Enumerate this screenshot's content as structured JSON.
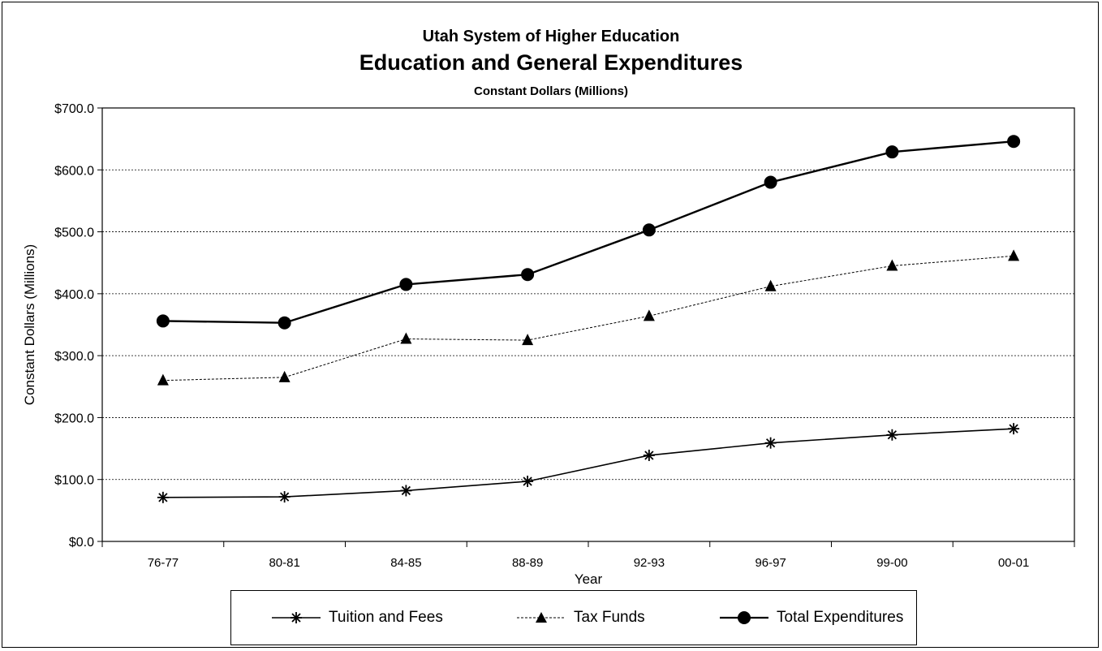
{
  "chart_data": {
    "type": "line",
    "title": "Utah System of Higher Education",
    "subtitle": "Education and General Expenditures",
    "subtitle2": "Constant Dollars (Millions)",
    "xlabel": "Year",
    "ylabel": "Constant Dollars (Millions)",
    "ylim": [
      0,
      700
    ],
    "yticks": [
      "$0.0",
      "$100.0",
      "$200.0",
      "$300.0",
      "$400.0",
      "$500.0",
      "$600.0",
      "$700.0"
    ],
    "categories": [
      "76-77",
      "80-81",
      "84-85",
      "88-89",
      "92-93",
      "96-97",
      "99-00",
      "00-01"
    ],
    "grid": "horizontal dotted",
    "legend": "bottom",
    "series": [
      {
        "name": "Tuition and Fees",
        "marker": "asterisk",
        "values": [
          71,
          72,
          82,
          97,
          139,
          159,
          172,
          182
        ]
      },
      {
        "name": "Tax Funds",
        "marker": "triangle",
        "values": [
          260,
          265,
          327,
          325,
          364,
          412,
          445,
          461
        ]
      },
      {
        "name": "Total Expenditures",
        "marker": "circle",
        "values": [
          356,
          353,
          415,
          431,
          503,
          580,
          629,
          646
        ]
      }
    ]
  }
}
